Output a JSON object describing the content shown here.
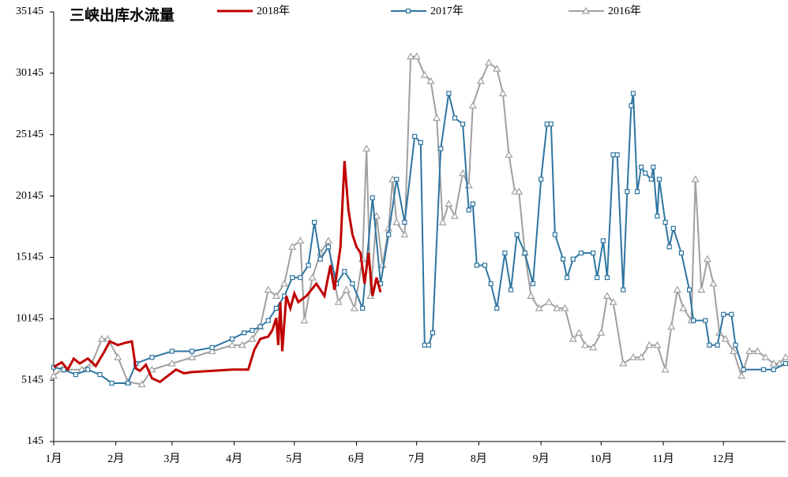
{
  "chart_data": {
    "type": "line",
    "title": "三峡出库水流量",
    "xlim": [
      1,
      366
    ],
    "xticks": [
      {
        "value": 1,
        "label": "1月"
      },
      {
        "value": 32,
        "label": "2月"
      },
      {
        "value": 60,
        "label": "3月"
      },
      {
        "value": 91,
        "label": "4月"
      },
      {
        "value": 121,
        "label": "5月"
      },
      {
        "value": 152,
        "label": "6月"
      },
      {
        "value": 182,
        "label": "7月"
      },
      {
        "value": 213,
        "label": "8月"
      },
      {
        "value": 244,
        "label": "9月"
      },
      {
        "value": 274,
        "label": "10月"
      },
      {
        "value": 305,
        "label": "11月"
      },
      {
        "value": 335,
        "label": "12月"
      }
    ],
    "ylim": [
      145,
      35145
    ],
    "yticks": [
      145,
      5145,
      10145,
      15145,
      20145,
      25145,
      30145,
      35145
    ],
    "series": [
      {
        "name": "2018年",
        "color": "#c00000",
        "marker": "none",
        "x": [
          1,
          5,
          8,
          11,
          14,
          18,
          22,
          26,
          29,
          33,
          37,
          40,
          42,
          44,
          47,
          50,
          54,
          58,
          62,
          66,
          70,
          80,
          90,
          98,
          101,
          104,
          108,
          110,
          112,
          113,
          114,
          115,
          117,
          119,
          121,
          123,
          127,
          132,
          136,
          139,
          141,
          144,
          146,
          148,
          150,
          152,
          154,
          156,
          158,
          160,
          162,
          164
        ],
        "values": [
          6200,
          6600,
          6000,
          6900,
          6500,
          6900,
          6300,
          7400,
          8300,
          8000,
          8200,
          8300,
          6100,
          5900,
          6400,
          5300,
          5000,
          5500,
          6000,
          5700,
          5800,
          5900,
          6000,
          6000,
          7600,
          8500,
          8700,
          9200,
          10200,
          8000,
          11500,
          7500,
          12000,
          11000,
          12200,
          11500,
          12000,
          13000,
          12000,
          14500,
          12500,
          16000,
          23000,
          19000,
          17000,
          16000,
          15500,
          13000,
          15500,
          12000,
          13500,
          12300
        ]
      },
      {
        "name": "2017年",
        "color": "#2e75a0",
        "marker": "square",
        "x": [
          1,
          6,
          12,
          18,
          24,
          30,
          38,
          42,
          50,
          60,
          70,
          80,
          90,
          96,
          100,
          104,
          108,
          112,
          116,
          120,
          124,
          128,
          131,
          134,
          138,
          142,
          146,
          150,
          155,
          160,
          164,
          168,
          172,
          176,
          181,
          184,
          186,
          188,
          190,
          194,
          198,
          201,
          205,
          208,
          210,
          212,
          216,
          219,
          222,
          226,
          229,
          232,
          236,
          240,
          244,
          247,
          249,
          251,
          255,
          257,
          260,
          264,
          270,
          272,
          275,
          277,
          280,
          282,
          285,
          287,
          289,
          290,
          292,
          294,
          296,
          299,
          300,
          302,
          303,
          306,
          308,
          310,
          314,
          318,
          320,
          326,
          328,
          332,
          335,
          339,
          341,
          345,
          355,
          360,
          366
        ],
        "values": [
          6200,
          6000,
          5600,
          6000,
          5600,
          4900,
          4900,
          6500,
          7000,
          7500,
          7500,
          7800,
          8500,
          9000,
          9200,
          9500,
          10000,
          11000,
          12000,
          13500,
          13500,
          14500,
          18000,
          15000,
          16000,
          13000,
          14000,
          13000,
          11000,
          20000,
          13000,
          17000,
          21500,
          18000,
          25000,
          24500,
          8000,
          8000,
          9000,
          24000,
          28500,
          26500,
          26000,
          19000,
          19500,
          14500,
          14500,
          13000,
          11000,
          15500,
          12500,
          17000,
          15500,
          13000,
          21500,
          26000,
          26000,
          17000,
          15000,
          13500,
          15000,
          15500,
          15500,
          13500,
          16500,
          13500,
          23500,
          23500,
          12500,
          20500,
          27500,
          28500,
          20500,
          22500,
          22000,
          21500,
          22500,
          18500,
          21500,
          18000,
          16000,
          17500,
          15500,
          12500,
          10000,
          10000,
          8000,
          8000,
          10500,
          10500,
          8000,
          6000,
          6000,
          6000,
          6500
        ]
      },
      {
        "name": "2016年",
        "color": "#a0a0a0",
        "marker": "triangle",
        "x": [
          1,
          5,
          15,
          20,
          25,
          28,
          33,
          38,
          45,
          50,
          60,
          70,
          80,
          90,
          95,
          100,
          104,
          108,
          112,
          116,
          120,
          124,
          126,
          130,
          134,
          138,
          140,
          143,
          147,
          151,
          155,
          157,
          159,
          162,
          165,
          168,
          170,
          172,
          176,
          179,
          182,
          186,
          189,
          192,
          195,
          198,
          201,
          205,
          208,
          210,
          214,
          218,
          222,
          225,
          228,
          231,
          233,
          236,
          239,
          243,
          248,
          252,
          256,
          260,
          263,
          266,
          270,
          274,
          277,
          280,
          285,
          290,
          294,
          298,
          302,
          306,
          309,
          312,
          315,
          319,
          321,
          324,
          327,
          330,
          333,
          336,
          340,
          344,
          348,
          352,
          356,
          360,
          363,
          366
        ],
        "values": [
          5500,
          6000,
          6000,
          6500,
          8500,
          8500,
          7000,
          5000,
          4800,
          6000,
          6500,
          7000,
          7500,
          8000,
          8000,
          8500,
          9500,
          12500,
          12000,
          13000,
          16000,
          16500,
          10000,
          13500,
          15500,
          16500,
          14000,
          11500,
          12500,
          11000,
          15000,
          24000,
          12000,
          18500,
          14500,
          17500,
          21500,
          18000,
          17000,
          31500,
          31500,
          30000,
          29500,
          26500,
          18000,
          19500,
          18500,
          22000,
          21000,
          27500,
          29500,
          31000,
          30500,
          28500,
          23500,
          20500,
          20500,
          15500,
          12000,
          11000,
          11500,
          11000,
          11000,
          8500,
          9000,
          8000,
          7800,
          9000,
          12000,
          11500,
          6500,
          7000,
          7000,
          8000,
          8000,
          6000,
          9500,
          12500,
          11000,
          10000,
          21500,
          12500,
          15000,
          13000,
          9000,
          8500,
          7500,
          5500,
          7500,
          7500,
          7000,
          6500,
          6500,
          7000
        ]
      }
    ]
  }
}
